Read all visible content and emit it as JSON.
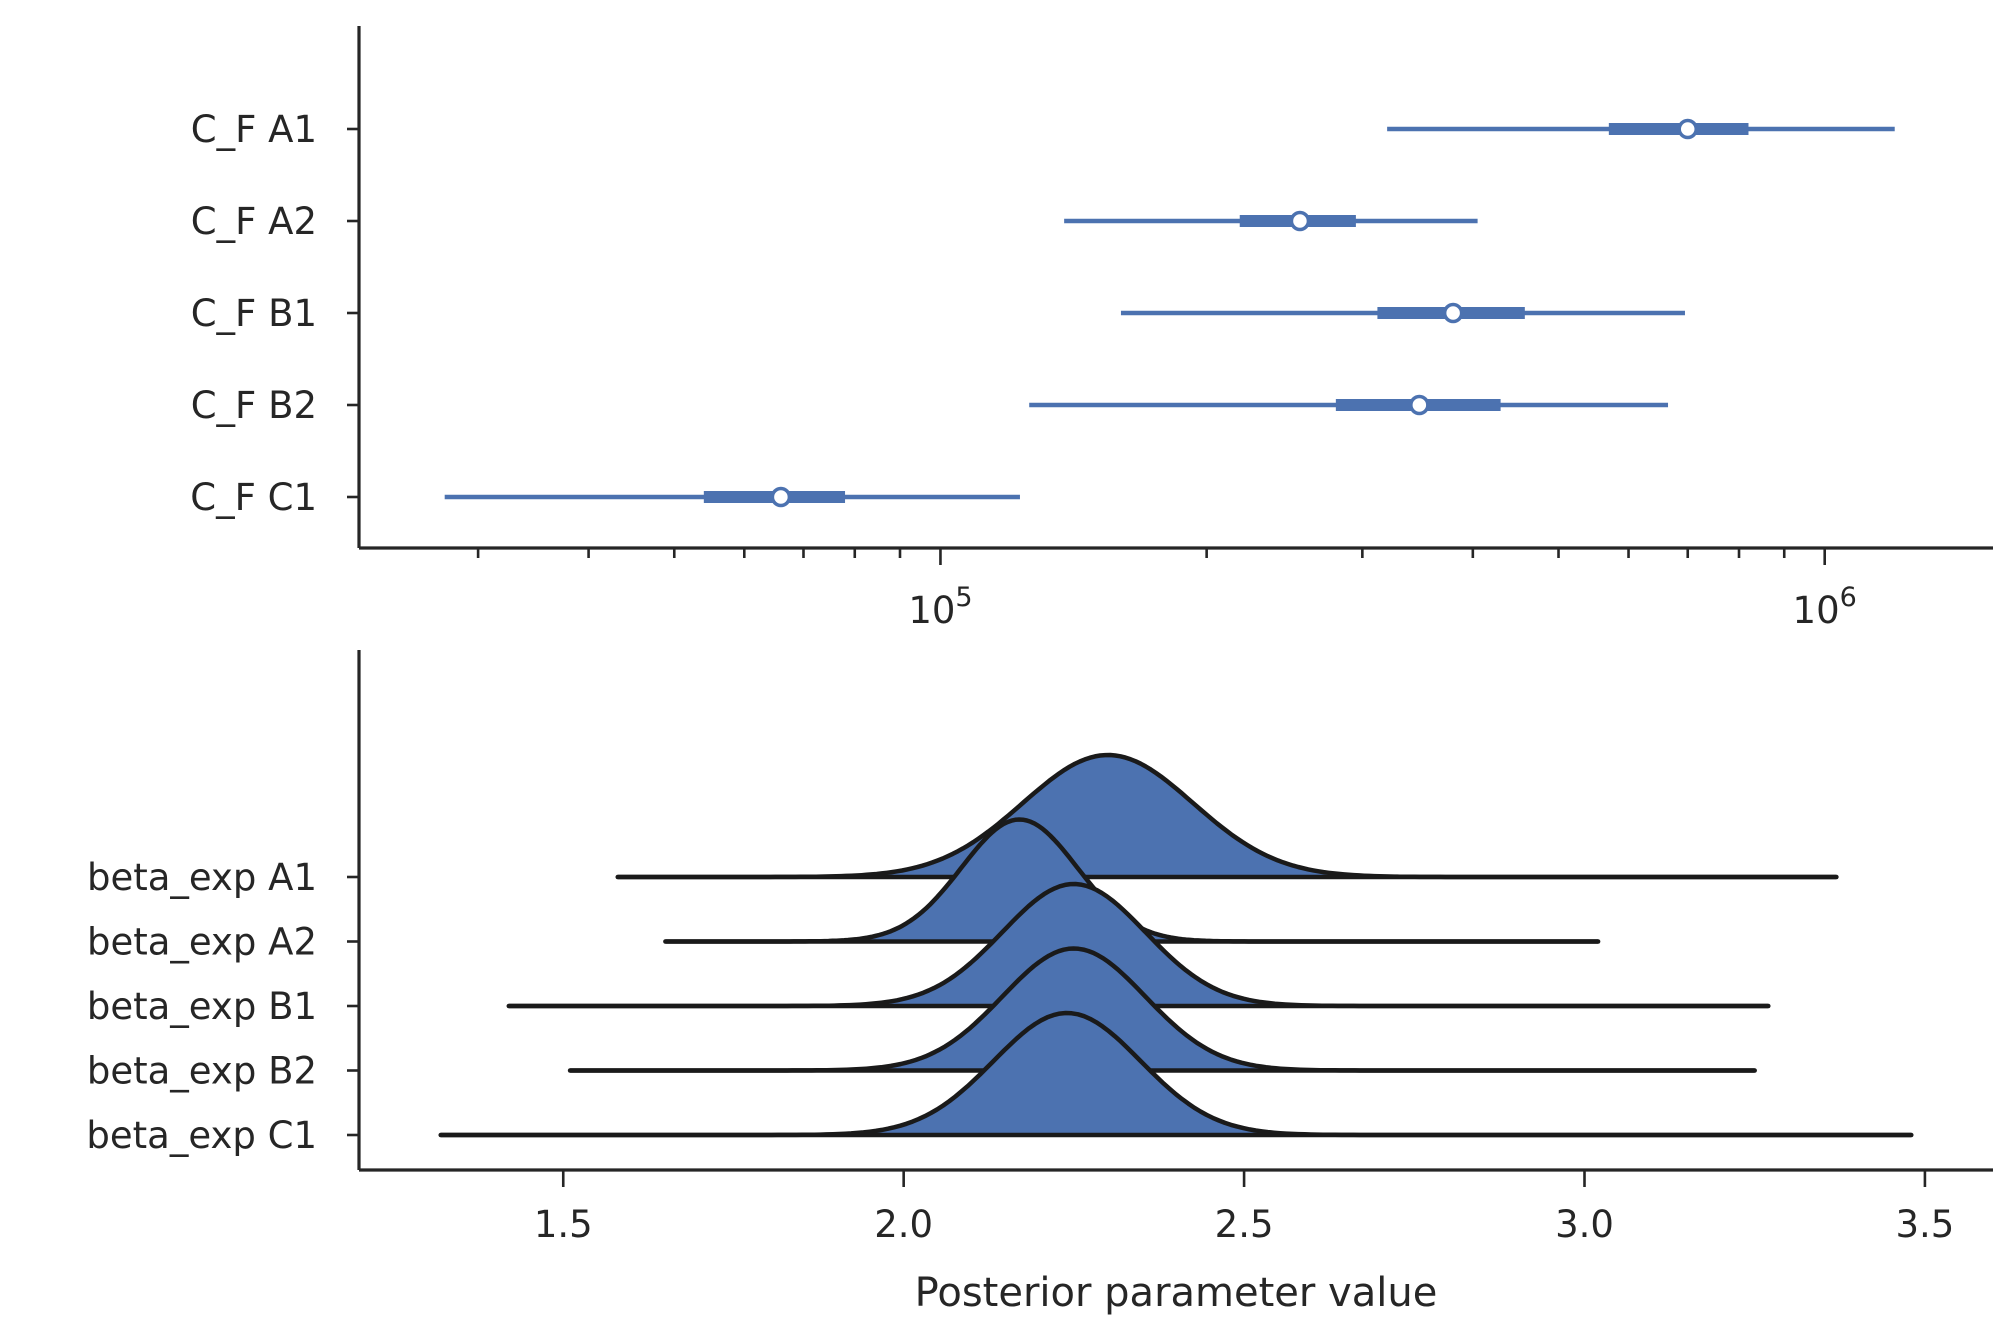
{
  "chart_data": [
    {
      "type": "forest",
      "xscale": "log",
      "xlim": [
        22000,
        1550000
      ],
      "major_ticks": [
        100000,
        1000000
      ],
      "major_tick_labels": [
        {
          "base": "10",
          "exp": "5"
        },
        {
          "base": "10",
          "exp": "6"
        }
      ],
      "minor_ticks": [
        30000,
        40000,
        50000,
        60000,
        70000,
        80000,
        90000,
        200000,
        300000,
        400000,
        500000,
        600000,
        700000,
        800000,
        900000
      ],
      "series_color": "#4c72b0",
      "rows": [
        {
          "label": "C_F A1",
          "hdi_low": 320000,
          "q25": 570000,
          "median": 700000,
          "q75": 820000,
          "hdi_high": 1200000
        },
        {
          "label": "C_F A2",
          "hdi_low": 138000,
          "q25": 218000,
          "median": 255000,
          "q75": 295000,
          "hdi_high": 405000
        },
        {
          "label": "C_F B1",
          "hdi_low": 160000,
          "q25": 312000,
          "median": 380000,
          "q75": 458000,
          "hdi_high": 695000
        },
        {
          "label": "C_F B2",
          "hdi_low": 126000,
          "q25": 280000,
          "median": 348000,
          "q75": 430000,
          "hdi_high": 665000
        },
        {
          "label": "C_F C1",
          "hdi_low": 27500,
          "q25": 54000,
          "median": 66000,
          "q75": 78000,
          "hdi_high": 123000
        }
      ]
    },
    {
      "type": "ridgeline",
      "xlim": [
        1.2,
        3.6
      ],
      "x_ticks": [
        1.5,
        2.0,
        2.5,
        3.0,
        3.5
      ],
      "x_tick_labels": [
        "1.5",
        "2.0",
        "2.5",
        "3.0",
        "3.5"
      ],
      "xlabel": "Posterior parameter value",
      "fill_color": "#4c72b0",
      "line_color": "#1a1a1a",
      "rows": [
        {
          "label": "beta_exp A1",
          "min": 1.58,
          "max": 3.37,
          "peak": 2.3,
          "sd": 0.125
        },
        {
          "label": "beta_exp A2",
          "min": 1.65,
          "max": 3.02,
          "peak": 2.17,
          "sd": 0.085
        },
        {
          "label": "beta_exp B1",
          "min": 1.42,
          "max": 3.27,
          "peak": 2.25,
          "sd": 0.105
        },
        {
          "label": "beta_exp B2",
          "min": 1.51,
          "max": 3.25,
          "peak": 2.25,
          "sd": 0.105
        },
        {
          "label": "beta_exp C1",
          "min": 1.32,
          "max": 3.48,
          "peak": 2.24,
          "sd": 0.108
        }
      ]
    }
  ]
}
